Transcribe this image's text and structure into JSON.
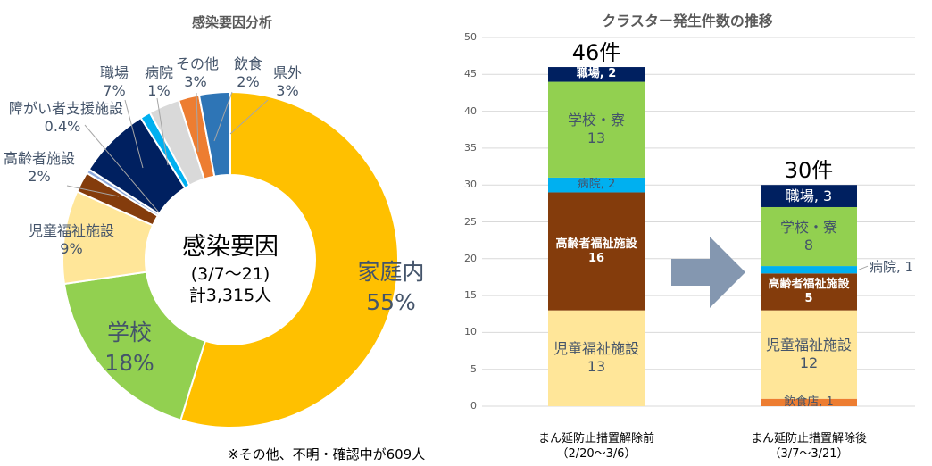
{
  "chart_data": [
    {
      "type": "pie",
      "title": "感染要因分析",
      "center_text": {
        "title": "感染要因",
        "period": "(3/7～21)",
        "total": "計3,315人"
      },
      "slices": [
        {
          "label": "家庭内",
          "value": 55,
          "value_label": "55%",
          "color": "#FFC000"
        },
        {
          "label": "学校",
          "value": 18,
          "value_label": "18%",
          "color": "#92D050"
        },
        {
          "label": "児童福祉施設",
          "value": 9,
          "value_label": "9%",
          "color": "#FFE699"
        },
        {
          "label": "高齢者施設",
          "value": 2,
          "value_label": "2%",
          "color": "#843C0C"
        },
        {
          "label": "障がい者支援施設",
          "value": 0.4,
          "value_label": "0.4%",
          "color": "#8EA9DB"
        },
        {
          "label": "職場",
          "value": 7,
          "value_label": "7%",
          "color": "#002060"
        },
        {
          "label": "病院",
          "value": 1,
          "value_label": "1%",
          "color": "#00B0F0"
        },
        {
          "label": "その他",
          "value": 3,
          "value_label": "3%",
          "color": "#D9D9D9"
        },
        {
          "label": "飲食",
          "value": 2,
          "value_label": "2%",
          "color": "#ED7D31"
        },
        {
          "label": "県外",
          "value": 3,
          "value_label": "3%",
          "color": "#2E75B6"
        }
      ],
      "footnote": "※その他、不明・確認中が609人"
    },
    {
      "type": "bar",
      "stacked": true,
      "title": "クラスター発生件数の推移",
      "ylim": [
        0,
        50
      ],
      "yticks": [
        0,
        5,
        10,
        15,
        20,
        25,
        30,
        35,
        40,
        45,
        50
      ],
      "grid": true,
      "categories": [
        {
          "line1": "まん延防止措置解除前",
          "line2": "（2/20～3/6）",
          "total_label": "46件"
        },
        {
          "line1": "まん延防止措置解除後",
          "line2": "（3/7～3/21）",
          "total_label": "30件"
        }
      ],
      "series": [
        {
          "name": "飲食店",
          "values": [
            0,
            1
          ],
          "color": "#ED7D31",
          "labels": [
            "",
            "飲食店, 1"
          ]
        },
        {
          "name": "児童福祉施設",
          "values": [
            13,
            12
          ],
          "color": "#FFE699",
          "labels": [
            "児童福祉施設\n13",
            "児童福祉施設\n12"
          ]
        },
        {
          "name": "高齢者福祉施設",
          "values": [
            16,
            5
          ],
          "color": "#843C0C",
          "labels": [
            "高齢者福祉施設\n16",
            "高齢者福祉施設\n5"
          ]
        },
        {
          "name": "病院",
          "values": [
            2,
            1
          ],
          "color": "#00B0F0",
          "labels": [
            "病院, 2",
            "病院, 1"
          ]
        },
        {
          "name": "学校・寮",
          "values": [
            13,
            8
          ],
          "color": "#92D050",
          "labels": [
            "学校・寮\n13",
            "学校・寮\n8"
          ]
        },
        {
          "name": "職場",
          "values": [
            2,
            3
          ],
          "color": "#002060",
          "labels": [
            "職場, 2",
            "職場, 3"
          ]
        }
      ]
    }
  ]
}
